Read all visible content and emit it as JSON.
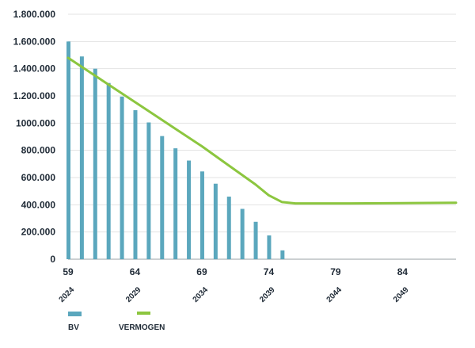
{
  "chart_data": {
    "type": "bar",
    "title": "",
    "xlabel": "",
    "ylabel": "",
    "ylim": [
      0,
      1800000
    ],
    "y_ticks": [
      0,
      200000,
      400000,
      600000,
      800000,
      1000000,
      1200000,
      1400000,
      1600000,
      1800000
    ],
    "y_tick_labels": [
      "0",
      "200.000",
      "400.000",
      "600.000",
      "800.000",
      "1000.000",
      "1.200.000",
      "1.400.000",
      "1.600.000",
      "1.800.000"
    ],
    "x_range": [
      59,
      88
    ],
    "x_ticks": [
      59,
      64,
      69,
      74,
      79,
      84
    ],
    "x_tick_labels": [
      "59",
      "64",
      "69",
      "74",
      "79",
      "84"
    ],
    "x_year_labels": [
      "2024",
      "2029",
      "2034",
      "2039",
      "2044",
      "2049"
    ],
    "grid": true,
    "legend_position": "bottom-left",
    "series": [
      {
        "name": "BV",
        "type": "bar",
        "color": "#5ba7bd",
        "x": [
          59,
          60,
          61,
          62,
          63,
          64,
          65,
          66,
          67,
          68,
          69,
          70,
          71,
          72,
          73,
          74,
          75
        ],
        "values": [
          1600000,
          1490000,
          1400000,
          1295000,
          1195000,
          1095000,
          1005000,
          905000,
          815000,
          725000,
          645000,
          555000,
          460000,
          370000,
          275000,
          175000,
          65000
        ]
      },
      {
        "name": "VERMOGEN",
        "type": "line",
        "color": "#8cc63f",
        "x": [
          59,
          61,
          63,
          65,
          67,
          69,
          71,
          73,
          74,
          75,
          76,
          80,
          88
        ],
        "values": [
          1480000,
          1350000,
          1220000,
          1090000,
          960000,
          830000,
          690000,
          550000,
          470000,
          420000,
          410000,
          410000,
          415000
        ]
      }
    ]
  }
}
